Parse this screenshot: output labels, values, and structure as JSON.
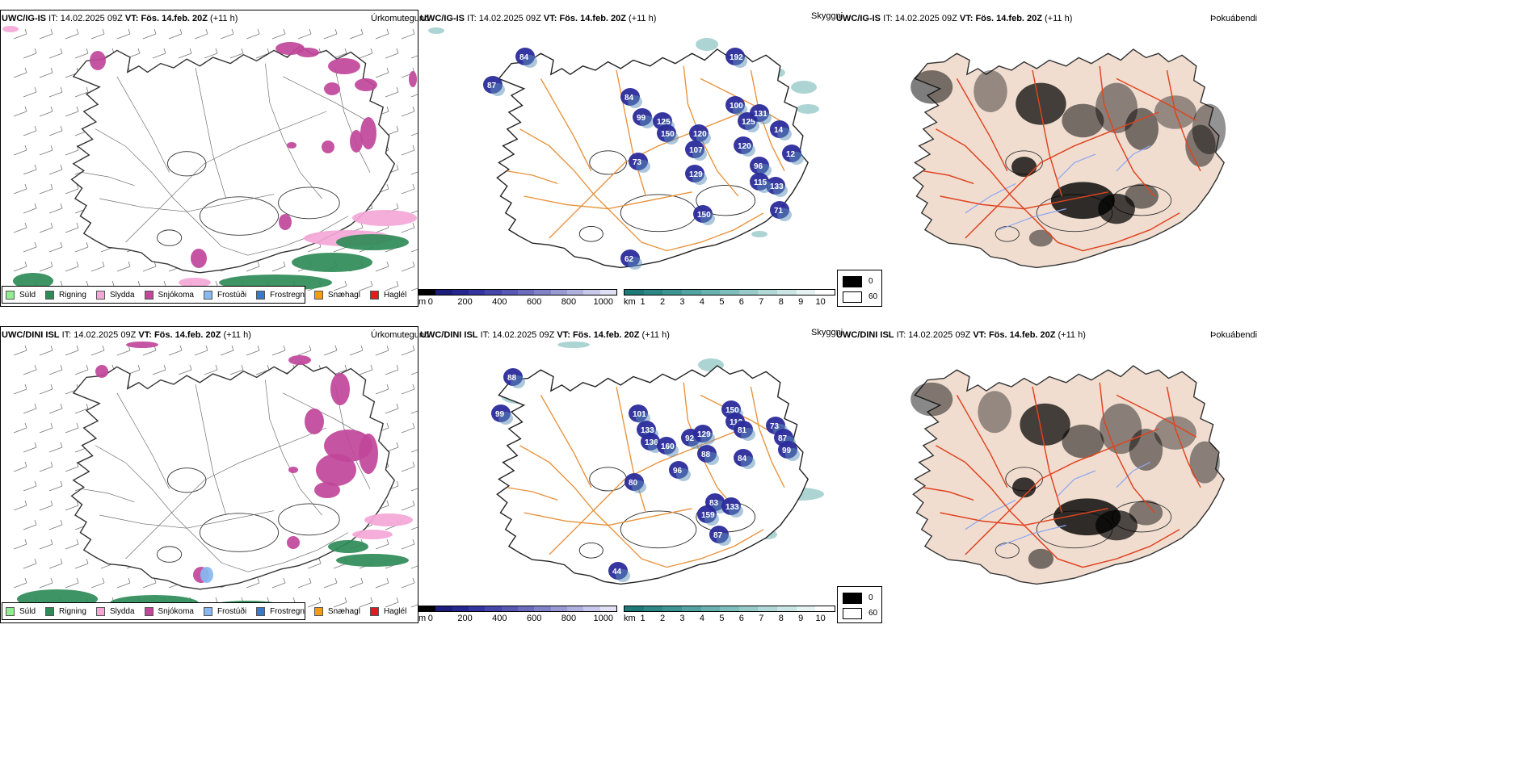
{
  "rows": [
    {
      "model": "UWC/IG-IS",
      "it_label": "IT:",
      "it_value": "14.02.2025 09Z",
      "vt_label": "VT:",
      "vt_value": "Fös. 14.feb. 20Z",
      "lead": "(+11 h)",
      "precip_title": "Úrkomutegund",
      "vis_title": "Skyggni",
      "fog_title": "Þokuábendi",
      "cloud_labels": [
        "84",
        "87",
        "84",
        "99",
        "125",
        "150",
        "120",
        "107",
        "100",
        "125",
        "131",
        "120",
        "129",
        "73",
        "96",
        "133",
        "150",
        "115",
        "62",
        "14",
        "12",
        "192",
        "71"
      ]
    },
    {
      "model": "UWC/DINI ISL",
      "it_label": "IT:",
      "it_value": "14.02.2025 09Z",
      "vt_label": "VT:",
      "vt_value": "Fös. 14.feb. 20Z",
      "lead": "(+11 h)",
      "precip_title": "Úrkomutegund",
      "vis_title": "Skyggni",
      "fog_title": "Þokuábendi",
      "cloud_labels": [
        "88",
        "99",
        "101",
        "133",
        "136",
        "160",
        "150",
        "112",
        "81",
        "92",
        "80",
        "96",
        "129",
        "88",
        "84",
        "83",
        "133",
        "159",
        "44",
        "73",
        "87",
        "99",
        "87"
      ]
    }
  ],
  "precip_legend": [
    {
      "label": "Súld",
      "color": "#90ee90"
    },
    {
      "label": "Rigning",
      "color": "#2e8b57"
    },
    {
      "label": "Slydda",
      "color": "#f4a6d7"
    },
    {
      "label": "Snjókoma",
      "color": "#c0479a"
    },
    {
      "label": "Frostúði",
      "color": "#87b8f0"
    },
    {
      "label": "Frostregn",
      "color": "#3a78c8"
    },
    {
      "label": "Snæhagl",
      "color": "#f39c12"
    },
    {
      "label": "Haglél",
      "color": "#e41a1c"
    }
  ],
  "cloud_base_bar": {
    "unit": "m",
    "ticks": [
      "0",
      "200",
      "400",
      "600",
      "800",
      "1000"
    ],
    "colors": [
      "#000000",
      "#1c1c7a",
      "#26268f",
      "#3434a0",
      "#4646aa",
      "#5858b4",
      "#6c6cbf",
      "#8282c9",
      "#9999d4",
      "#b0b0df",
      "#c8c8ea",
      "#e0e0f4"
    ]
  },
  "visibility_bar": {
    "unit": "km",
    "ticks": [
      "1",
      "2",
      "3",
      "4",
      "5",
      "6",
      "7",
      "8",
      "9",
      "10"
    ],
    "colors": [
      "#1d7a78",
      "#2c8886",
      "#3d9593",
      "#52a3a1",
      "#67b1ae",
      "#7ebebc",
      "#96cbc9",
      "#b0d8d6",
      "#cae5e4",
      "#e4f2f1",
      "#ffffff"
    ]
  },
  "fog_legend": [
    {
      "value": "0",
      "color": "#000000"
    },
    {
      "value": "60",
      "color": "#ffffff"
    }
  ],
  "colors": {
    "coast": "#222222",
    "roads_vis": "#e8913a",
    "roads_fog": "#e0431f",
    "land_fog": "#f0ddd0",
    "rivers_fog": "#8fa8f0"
  }
}
